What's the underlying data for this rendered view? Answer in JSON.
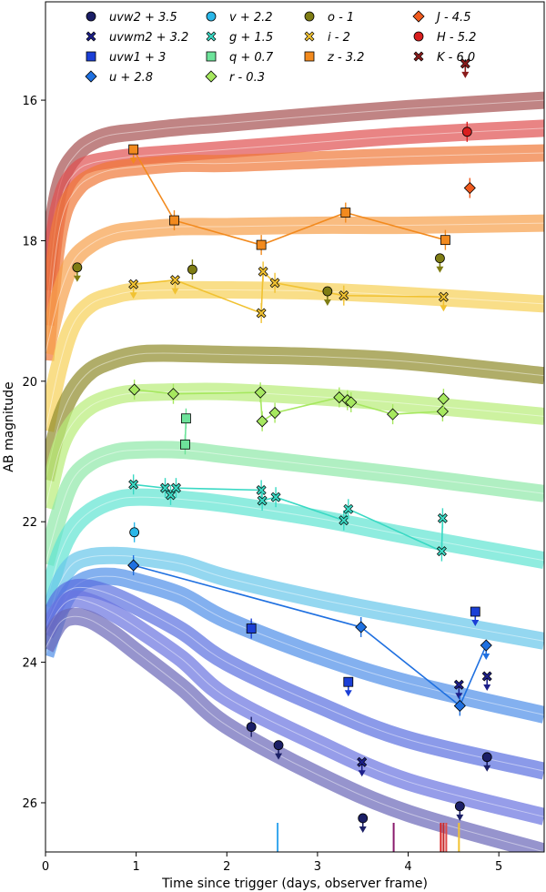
{
  "chart_data": {
    "type": "scatter",
    "xlabel": "Time since trigger (days, observer frame)",
    "ylabel": "AB magnitude",
    "xlim": [
      0,
      5.5
    ],
    "ylim": [
      26.7,
      14.6
    ],
    "x_ticks": [
      0,
      1,
      2,
      3,
      4,
      5
    ],
    "y_ticks": [
      16,
      18,
      20,
      22,
      24,
      26
    ],
    "legend_location": "top",
    "legend": [
      {
        "label": "uvw2 + 3.5",
        "marker": "circle",
        "color": "#1b1f66"
      },
      {
        "label": "uvwm2 + 3.2",
        "marker": "x",
        "color": "#1c1f8a"
      },
      {
        "label": "uvw1 + 3",
        "marker": "square",
        "color": "#1b3fd6"
      },
      {
        "label": "u + 2.8",
        "marker": "diamond",
        "color": "#1f70e0"
      },
      {
        "label": "v + 2.2",
        "marker": "circle",
        "color": "#2ab7e8"
      },
      {
        "label": "g + 1.5",
        "marker": "x",
        "color": "#3ad9c4"
      },
      {
        "label": "q + 0.7",
        "marker": "square",
        "color": "#6de39a"
      },
      {
        "label": "r - 0.3",
        "marker": "diamond",
        "color": "#a6e85f"
      },
      {
        "label": "o - 1",
        "marker": "circle",
        "color": "#7f7d14"
      },
      {
        "label": "i - 2",
        "marker": "x",
        "color": "#f1c232"
      },
      {
        "label": "z - 3.2",
        "marker": "square",
        "color": "#f28a1e"
      },
      {
        "label": "J - 4.5",
        "marker": "diamond",
        "color": "#f05a1e"
      },
      {
        "label": "H - 5.2",
        "marker": "circle",
        "color": "#d91f1f"
      },
      {
        "label": "K - 6.0",
        "marker": "x",
        "color": "#8a1b1b"
      }
    ],
    "model_bands": [
      {
        "name": "K",
        "color": "#a55050",
        "x": [
          0,
          0.1,
          0.2,
          0.35,
          0.5,
          0.7,
          1,
          1.5,
          2,
          3,
          4,
          5.5
        ],
        "y": [
          18.7,
          17.6,
          17.05,
          16.75,
          16.6,
          16.5,
          16.45,
          16.38,
          16.33,
          16.22,
          16.12,
          16.0
        ]
      },
      {
        "name": "H",
        "color": "#e05050",
        "x": [
          0,
          0.1,
          0.2,
          0.35,
          0.5,
          0.7,
          1,
          1.5,
          2,
          3,
          4,
          5.5
        ],
        "y": [
          19.2,
          17.9,
          17.3,
          17.0,
          16.9,
          16.85,
          16.8,
          16.75,
          16.7,
          16.6,
          16.5,
          16.4
        ]
      },
      {
        "name": "J",
        "color": "#f07838",
        "x": [
          0,
          0.1,
          0.2,
          0.35,
          0.5,
          0.7,
          1,
          1.5,
          2,
          3,
          4,
          5.5
        ],
        "y": [
          19.7,
          18.3,
          17.6,
          17.25,
          17.1,
          17.0,
          16.95,
          16.9,
          16.9,
          16.85,
          16.8,
          16.75
        ]
      },
      {
        "name": "z",
        "color": "#f6a04a",
        "x": [
          0,
          0.15,
          0.3,
          0.5,
          0.75,
          1,
          1.5,
          2,
          3,
          4,
          5.5
        ],
        "y": [
          19.6,
          18.8,
          18.3,
          18.05,
          17.9,
          17.85,
          17.8,
          17.8,
          17.78,
          17.78,
          17.75
        ]
      },
      {
        "name": "i",
        "color": "#f6d055",
        "x": [
          0,
          0.15,
          0.3,
          0.5,
          0.75,
          1,
          1.5,
          2,
          3,
          4,
          5.5
        ],
        "y": [
          20.7,
          19.8,
          19.2,
          18.9,
          18.78,
          18.72,
          18.7,
          18.7,
          18.72,
          18.78,
          18.9
        ]
      },
      {
        "name": "o",
        "color": "#8f8a2a",
        "x": [
          0,
          0.15,
          0.3,
          0.5,
          0.75,
          1,
          1.3,
          2,
          3,
          4,
          5.5
        ],
        "y": [
          21.4,
          20.6,
          20.15,
          19.85,
          19.7,
          19.62,
          19.6,
          19.62,
          19.65,
          19.72,
          19.92
        ]
      },
      {
        "name": "r",
        "color": "#b8ec78",
        "x": [
          0,
          0.15,
          0.3,
          0.5,
          0.75,
          1,
          1.5,
          2,
          3,
          4,
          5.5
        ],
        "y": [
          21.8,
          21.0,
          20.6,
          20.35,
          20.22,
          20.17,
          20.15,
          20.15,
          20.22,
          20.32,
          20.5
        ]
      },
      {
        "name": "q",
        "color": "#8ee8a8",
        "x": [
          0,
          0.15,
          0.3,
          0.5,
          0.75,
          1,
          1.5,
          2,
          3,
          4,
          5.5
        ],
        "y": [
          22.6,
          21.9,
          21.4,
          21.15,
          21.02,
          20.98,
          20.98,
          21.05,
          21.2,
          21.35,
          21.6
        ]
      },
      {
        "name": "g",
        "color": "#5fe4d2",
        "x": [
          0,
          0.15,
          0.3,
          0.5,
          0.75,
          1,
          1.5,
          2,
          3,
          4,
          5.5
        ],
        "y": [
          23.2,
          22.5,
          22.1,
          21.85,
          21.7,
          21.65,
          21.68,
          21.75,
          21.95,
          22.2,
          22.55
        ]
      },
      {
        "name": "v",
        "color": "#66c6ea",
        "x": [
          0,
          0.15,
          0.3,
          0.5,
          0.75,
          1,
          1.5,
          2,
          3,
          4,
          5.5
        ],
        "y": [
          23.5,
          22.9,
          22.6,
          22.5,
          22.48,
          22.5,
          22.6,
          22.8,
          23.1,
          23.35,
          23.7
        ]
      },
      {
        "name": "u",
        "color": "#4f8fe8",
        "x": [
          0,
          0.15,
          0.3,
          0.5,
          0.75,
          1,
          1.5,
          2,
          3,
          4,
          5.5
        ],
        "y": [
          23.9,
          23.3,
          22.95,
          22.8,
          22.78,
          22.85,
          23.05,
          23.4,
          23.9,
          24.3,
          24.75
        ]
      },
      {
        "name": "uvw1",
        "color": "#5a6fe0",
        "x": [
          0,
          0.15,
          0.3,
          0.5,
          0.75,
          1,
          1.5,
          2,
          3,
          4,
          5.5
        ],
        "y": [
          23.5,
          23.1,
          22.95,
          22.95,
          23.05,
          23.2,
          23.55,
          24.0,
          24.6,
          25.1,
          25.55
        ]
      },
      {
        "name": "uvwm2",
        "color": "#6a74e0",
        "x": [
          0,
          0.15,
          0.3,
          0.5,
          0.75,
          1,
          1.5,
          2,
          3,
          4,
          5.5
        ],
        "y": [
          23.6,
          23.25,
          23.1,
          23.15,
          23.3,
          23.5,
          23.95,
          24.5,
          25.15,
          25.7,
          26.2
        ]
      },
      {
        "name": "uvw2",
        "color": "#6a67b8",
        "x": [
          0,
          0.15,
          0.3,
          0.5,
          0.75,
          1,
          1.5,
          2,
          3,
          4,
          5.5
        ],
        "y": [
          23.8,
          23.45,
          23.35,
          23.4,
          23.6,
          23.85,
          24.35,
          24.9,
          25.6,
          26.15,
          26.7
        ]
      }
    ],
    "series": [
      {
        "name": "uvw2 + 3.5",
        "marker": "circle",
        "color": "#1b1f66",
        "connected": false,
        "x": [
          2.27,
          2.57,
          3.5,
          4.57,
          4.87
        ],
        "y": [
          24.92,
          25.18,
          26.22,
          26.05,
          25.35
        ],
        "upper_limit": [
          false,
          true,
          true,
          true,
          true
        ]
      },
      {
        "name": "uvwm2 + 3.2",
        "marker": "x",
        "color": "#1c1f8a",
        "connected": false,
        "x": [
          3.49,
          4.56,
          4.87
        ],
        "y": [
          25.42,
          24.32,
          24.2
        ],
        "upper_limit": [
          true,
          true,
          true
        ]
      },
      {
        "name": "uvw1 + 3",
        "marker": "square",
        "color": "#1b3fd6",
        "connected": false,
        "x": [
          2.27,
          3.34,
          4.74
        ],
        "y": [
          23.52,
          24.28,
          23.28
        ],
        "upper_limit": [
          false,
          true,
          true
        ]
      },
      {
        "name": "u + 2.8",
        "marker": "diamond",
        "color": "#1f70e0",
        "connected": true,
        "x": [
          0.97,
          3.48,
          4.57,
          4.86
        ],
        "y": [
          22.62,
          23.5,
          24.62,
          23.76
        ],
        "upper_limit": [
          false,
          false,
          false,
          true
        ]
      },
      {
        "name": "v + 2.2",
        "marker": "circle",
        "color": "#2ab7e8",
        "connected": false,
        "x": [
          0.98
        ],
        "y": [
          22.15
        ],
        "upper_limit": [
          false
        ]
      },
      {
        "name": "g + 1.5",
        "marker": "x",
        "color": "#3ad9c4",
        "connected": true,
        "x": [
          0.97,
          1.32,
          1.38,
          1.44,
          2.38,
          2.39,
          2.54,
          3.29,
          3.34,
          4.37,
          4.38
        ],
        "y": [
          21.47,
          21.52,
          21.62,
          21.52,
          21.55,
          21.7,
          21.65,
          21.98,
          21.82,
          22.42,
          21.95
        ],
        "upper_limit": [
          false,
          false,
          false,
          false,
          false,
          false,
          false,
          false,
          false,
          false,
          false
        ]
      },
      {
        "name": "q + 0.7",
        "marker": "square",
        "color": "#6de39a",
        "connected": true,
        "x": [
          1.55,
          1.54
        ],
        "y": [
          20.53,
          20.9
        ],
        "upper_limit": [
          false,
          false
        ]
      },
      {
        "name": "r - 0.3",
        "marker": "diamond",
        "color": "#a6e85f",
        "connected": true,
        "x": [
          0.98,
          1.41,
          2.37,
          2.39,
          2.53,
          3.24,
          3.33,
          3.37,
          3.83,
          4.38,
          4.39
        ],
        "y": [
          20.12,
          20.18,
          20.16,
          20.57,
          20.45,
          20.23,
          20.27,
          20.3,
          20.47,
          20.43,
          20.25
        ],
        "upper_limit": [
          false,
          false,
          false,
          false,
          false,
          false,
          false,
          false,
          false,
          false,
          false
        ]
      },
      {
        "name": "o - 1",
        "marker": "circle",
        "color": "#7f7d14",
        "connected": false,
        "x": [
          0.35,
          1.62,
          3.11,
          4.35
        ],
        "y": [
          18.38,
          18.41,
          18.72,
          18.25
        ],
        "upper_limit": [
          true,
          false,
          true,
          true
        ]
      },
      {
        "name": "i - 2",
        "marker": "x",
        "color": "#f1c232",
        "connected": true,
        "x": [
          0.97,
          1.43,
          2.38,
          2.4,
          2.53,
          3.29,
          4.39
        ],
        "y": [
          18.62,
          18.56,
          19.03,
          18.44,
          18.6,
          18.78,
          18.8
        ],
        "upper_limit": [
          true,
          true,
          false,
          false,
          false,
          false,
          true
        ]
      },
      {
        "name": "z - 3.2",
        "marker": "square",
        "color": "#f28a1e",
        "connected": true,
        "x": [
          0.97,
          1.42,
          2.38,
          3.31,
          4.41
        ],
        "y": [
          16.7,
          17.71,
          18.06,
          17.6,
          17.99
        ],
        "upper_limit": [
          true,
          false,
          false,
          false,
          false
        ]
      },
      {
        "name": "J - 4.5",
        "marker": "diamond",
        "color": "#f05a1e",
        "connected": false,
        "x": [
          4.68
        ],
        "y": [
          17.25
        ],
        "upper_limit": [
          false
        ]
      },
      {
        "name": "H - 5.2",
        "marker": "circle",
        "color": "#d91f1f",
        "connected": false,
        "x": [
          4.65
        ],
        "y": [
          16.45
        ],
        "upper_limit": [
          false
        ]
      },
      {
        "name": "K - 6.0",
        "marker": "x",
        "color": "#8a1b1b",
        "connected": false,
        "x": [
          4.63
        ],
        "y": [
          15.48
        ],
        "upper_limit": [
          true
        ]
      }
    ],
    "epoch_ticks": [
      {
        "x": 2.56,
        "color": "#35a6ee"
      },
      {
        "x": 3.84,
        "color": "#8a1b6d"
      },
      {
        "x": 4.36,
        "color": "#d91f1f"
      },
      {
        "x": 4.39,
        "color": "#c22a2a"
      },
      {
        "x": 4.42,
        "color": "#e04848"
      },
      {
        "x": 4.56,
        "color": "#f2c230"
      }
    ]
  }
}
